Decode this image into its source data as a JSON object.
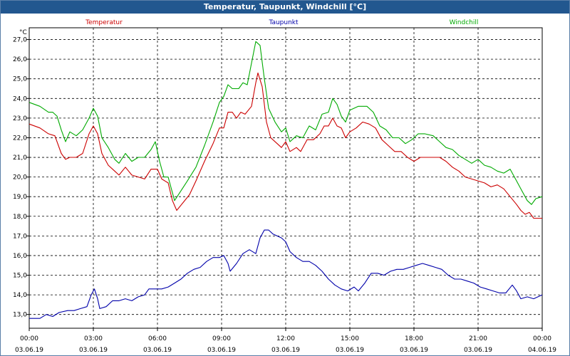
{
  "window": {
    "title": "Temperatur, Taupunkt, Windchill [°C]"
  },
  "chart_data": {
    "type": "line",
    "title": "Temperatur, Taupunkt, Windchill [°C]",
    "ylabel": "°C",
    "ylim": [
      12.3,
      27.6
    ],
    "yticks": [
      "13.0",
      "14.0",
      "15.0",
      "16.0",
      "17.0",
      "18.0",
      "19.0",
      "20.0",
      "21.0",
      "22.0",
      "23.0",
      "24.0",
      "25.0",
      "26.0",
      "27.0"
    ],
    "yticks_display": [
      "13,0",
      "14,0",
      "15,0",
      "16,0",
      "17,0",
      "18,0",
      "19,0",
      "20,0",
      "21,0",
      "22,0",
      "23,0",
      "24,0",
      "25,0",
      "26,0",
      "27,0"
    ],
    "xlim_hours": [
      0,
      24
    ],
    "xticks": [
      {
        "hours": 0,
        "time": "00:00",
        "date": "03.06.19"
      },
      {
        "hours": 3,
        "time": "03:00",
        "date": "03.06.19"
      },
      {
        "hours": 6,
        "time": "06:00",
        "date": "03.06.19"
      },
      {
        "hours": 9,
        "time": "09:00",
        "date": "03.06.19"
      },
      {
        "hours": 12,
        "time": "12:00",
        "date": "03.06.19"
      },
      {
        "hours": 15,
        "time": "15:00",
        "date": "03.06.19"
      },
      {
        "hours": 18,
        "time": "18:00",
        "date": "03.06.19"
      },
      {
        "hours": 21,
        "time": "21:00",
        "date": "03.06.19"
      },
      {
        "hours": 24,
        "time": "00:00",
        "date": "04.06.19"
      }
    ],
    "grid": true,
    "series": [
      {
        "name": "Temperatur",
        "color": "#cc0000",
        "points": [
          [
            0,
            22.7
          ],
          [
            0.5,
            22.5
          ],
          [
            0.9,
            22.2
          ],
          [
            1.2,
            22.1
          ],
          [
            1.5,
            21.2
          ],
          [
            1.7,
            20.9
          ],
          [
            1.9,
            21.0
          ],
          [
            2.2,
            21.0
          ],
          [
            2.5,
            21.2
          ],
          [
            2.8,
            22.2
          ],
          [
            3.0,
            22.6
          ],
          [
            3.2,
            22.2
          ],
          [
            3.4,
            21.2
          ],
          [
            3.7,
            20.6
          ],
          [
            4.0,
            20.3
          ],
          [
            4.2,
            20.1
          ],
          [
            4.5,
            20.5
          ],
          [
            4.8,
            20.1
          ],
          [
            5.1,
            20.0
          ],
          [
            5.4,
            19.9
          ],
          [
            5.7,
            20.4
          ],
          [
            6.0,
            20.4
          ],
          [
            6.2,
            19.9
          ],
          [
            6.5,
            19.7
          ],
          [
            6.7,
            18.8
          ],
          [
            6.9,
            18.3
          ],
          [
            7.2,
            18.7
          ],
          [
            7.5,
            19.1
          ],
          [
            7.8,
            19.8
          ],
          [
            8.2,
            20.8
          ],
          [
            8.6,
            21.7
          ],
          [
            8.9,
            22.5
          ],
          [
            9.1,
            22.5
          ],
          [
            9.3,
            23.3
          ],
          [
            9.5,
            23.3
          ],
          [
            9.7,
            23.0
          ],
          [
            9.9,
            23.3
          ],
          [
            10.1,
            23.2
          ],
          [
            10.4,
            23.6
          ],
          [
            10.6,
            24.8
          ],
          [
            10.7,
            25.3
          ],
          [
            10.9,
            24.6
          ],
          [
            11.1,
            22.8
          ],
          [
            11.3,
            22.0
          ],
          [
            11.6,
            21.7
          ],
          [
            11.8,
            21.5
          ],
          [
            12.0,
            21.8
          ],
          [
            12.2,
            21.3
          ],
          [
            12.5,
            21.5
          ],
          [
            12.7,
            21.3
          ],
          [
            13.0,
            21.9
          ],
          [
            13.3,
            21.9
          ],
          [
            13.6,
            22.2
          ],
          [
            13.8,
            22.6
          ],
          [
            14.0,
            22.6
          ],
          [
            14.2,
            23.0
          ],
          [
            14.4,
            22.6
          ],
          [
            14.6,
            22.5
          ],
          [
            14.8,
            22.0
          ],
          [
            15.0,
            22.3
          ],
          [
            15.3,
            22.5
          ],
          [
            15.6,
            22.8
          ],
          [
            15.9,
            22.7
          ],
          [
            16.2,
            22.5
          ],
          [
            16.5,
            21.9
          ],
          [
            16.8,
            21.6
          ],
          [
            17.1,
            21.3
          ],
          [
            17.4,
            21.3
          ],
          [
            17.7,
            21.0
          ],
          [
            18.0,
            20.8
          ],
          [
            18.3,
            21.0
          ],
          [
            18.6,
            21.0
          ],
          [
            18.9,
            21.0
          ],
          [
            19.2,
            21.0
          ],
          [
            19.5,
            20.8
          ],
          [
            19.8,
            20.5
          ],
          [
            20.1,
            20.3
          ],
          [
            20.4,
            20.0
          ],
          [
            20.7,
            19.9
          ],
          [
            21.0,
            19.8
          ],
          [
            21.3,
            19.7
          ],
          [
            21.6,
            19.5
          ],
          [
            21.9,
            19.6
          ],
          [
            22.2,
            19.4
          ],
          [
            22.5,
            19.0
          ],
          [
            22.8,
            18.6
          ],
          [
            23.0,
            18.3
          ],
          [
            23.2,
            18.1
          ],
          [
            23.4,
            18.2
          ],
          [
            23.6,
            17.9
          ],
          [
            24.0,
            17.9
          ]
        ]
      },
      {
        "name": "Taupunkt",
        "color": "#0000aa",
        "points": [
          [
            0,
            12.8
          ],
          [
            0.5,
            12.8
          ],
          [
            0.8,
            13.0
          ],
          [
            1.1,
            12.9
          ],
          [
            1.4,
            13.1
          ],
          [
            1.8,
            13.2
          ],
          [
            2.1,
            13.2
          ],
          [
            2.4,
            13.3
          ],
          [
            2.7,
            13.4
          ],
          [
            2.9,
            14.0
          ],
          [
            3.05,
            14.3
          ],
          [
            3.2,
            13.8
          ],
          [
            3.3,
            13.3
          ],
          [
            3.6,
            13.4
          ],
          [
            3.9,
            13.7
          ],
          [
            4.2,
            13.7
          ],
          [
            4.5,
            13.8
          ],
          [
            4.8,
            13.7
          ],
          [
            5.1,
            13.9
          ],
          [
            5.4,
            14.0
          ],
          [
            5.6,
            14.3
          ],
          [
            5.9,
            14.3
          ],
          [
            6.2,
            14.3
          ],
          [
            6.5,
            14.4
          ],
          [
            6.8,
            14.6
          ],
          [
            7.1,
            14.8
          ],
          [
            7.4,
            15.1
          ],
          [
            7.7,
            15.3
          ],
          [
            8.0,
            15.4
          ],
          [
            8.3,
            15.7
          ],
          [
            8.6,
            15.9
          ],
          [
            8.9,
            15.9
          ],
          [
            9.1,
            16.0
          ],
          [
            9.3,
            15.6
          ],
          [
            9.4,
            15.2
          ],
          [
            9.7,
            15.6
          ],
          [
            10.0,
            16.1
          ],
          [
            10.3,
            16.3
          ],
          [
            10.6,
            16.1
          ],
          [
            10.8,
            16.9
          ],
          [
            11.0,
            17.3
          ],
          [
            11.2,
            17.3
          ],
          [
            11.4,
            17.1
          ],
          [
            11.6,
            17.0
          ],
          [
            11.8,
            16.9
          ],
          [
            12.0,
            16.7
          ],
          [
            12.2,
            16.2
          ],
          [
            12.5,
            15.9
          ],
          [
            12.8,
            15.7
          ],
          [
            13.1,
            15.7
          ],
          [
            13.4,
            15.5
          ],
          [
            13.7,
            15.2
          ],
          [
            14.0,
            14.8
          ],
          [
            14.3,
            14.5
          ],
          [
            14.6,
            14.3
          ],
          [
            14.9,
            14.2
          ],
          [
            15.2,
            14.4
          ],
          [
            15.4,
            14.2
          ],
          [
            15.7,
            14.6
          ],
          [
            16.0,
            15.1
          ],
          [
            16.3,
            15.1
          ],
          [
            16.6,
            15.0
          ],
          [
            16.9,
            15.2
          ],
          [
            17.2,
            15.3
          ],
          [
            17.5,
            15.3
          ],
          [
            17.8,
            15.4
          ],
          [
            18.1,
            15.5
          ],
          [
            18.4,
            15.6
          ],
          [
            18.7,
            15.5
          ],
          [
            19.0,
            15.4
          ],
          [
            19.3,
            15.3
          ],
          [
            19.6,
            15.0
          ],
          [
            19.9,
            14.8
          ],
          [
            20.2,
            14.8
          ],
          [
            20.5,
            14.7
          ],
          [
            20.8,
            14.6
          ],
          [
            21.1,
            14.4
          ],
          [
            21.4,
            14.3
          ],
          [
            21.7,
            14.2
          ],
          [
            22.0,
            14.1
          ],
          [
            22.3,
            14.1
          ],
          [
            22.6,
            14.5
          ],
          [
            22.8,
            14.2
          ],
          [
            23.0,
            13.8
          ],
          [
            23.3,
            13.9
          ],
          [
            23.6,
            13.8
          ],
          [
            23.8,
            13.9
          ],
          [
            24.0,
            14.0
          ]
        ]
      },
      {
        "name": "Windchill",
        "color": "#00aa00",
        "points": [
          [
            0,
            23.8
          ],
          [
            0.5,
            23.6
          ],
          [
            0.9,
            23.3
          ],
          [
            1.1,
            23.3
          ],
          [
            1.3,
            23.1
          ],
          [
            1.5,
            22.4
          ],
          [
            1.7,
            21.8
          ],
          [
            1.9,
            22.3
          ],
          [
            2.2,
            22.1
          ],
          [
            2.5,
            22.4
          ],
          [
            2.8,
            23.0
          ],
          [
            3.0,
            23.5
          ],
          [
            3.2,
            23.1
          ],
          [
            3.4,
            22.0
          ],
          [
            3.7,
            21.5
          ],
          [
            4.0,
            20.9
          ],
          [
            4.2,
            20.7
          ],
          [
            4.5,
            21.2
          ],
          [
            4.8,
            20.8
          ],
          [
            5.1,
            21.0
          ],
          [
            5.4,
            21.0
          ],
          [
            5.7,
            21.4
          ],
          [
            5.9,
            21.8
          ],
          [
            6.1,
            20.8
          ],
          [
            6.3,
            20.0
          ],
          [
            6.5,
            20.0
          ],
          [
            6.7,
            19.2
          ],
          [
            6.8,
            18.8
          ],
          [
            7.1,
            19.3
          ],
          [
            7.4,
            19.8
          ],
          [
            7.8,
            20.5
          ],
          [
            8.2,
            21.6
          ],
          [
            8.6,
            22.8
          ],
          [
            8.9,
            23.8
          ],
          [
            9.1,
            24.1
          ],
          [
            9.3,
            24.7
          ],
          [
            9.5,
            24.5
          ],
          [
            9.8,
            24.5
          ],
          [
            10.0,
            24.8
          ],
          [
            10.2,
            24.7
          ],
          [
            10.4,
            25.8
          ],
          [
            10.6,
            26.9
          ],
          [
            10.8,
            26.7
          ],
          [
            11.0,
            25.0
          ],
          [
            11.2,
            23.5
          ],
          [
            11.5,
            22.8
          ],
          [
            11.8,
            22.3
          ],
          [
            12.0,
            22.5
          ],
          [
            12.2,
            21.8
          ],
          [
            12.5,
            22.1
          ],
          [
            12.8,
            22.0
          ],
          [
            13.1,
            22.6
          ],
          [
            13.4,
            22.4
          ],
          [
            13.7,
            23.2
          ],
          [
            14.0,
            23.3
          ],
          [
            14.2,
            24.0
          ],
          [
            14.4,
            23.7
          ],
          [
            14.6,
            23.1
          ],
          [
            14.8,
            22.8
          ],
          [
            15.0,
            23.4
          ],
          [
            15.4,
            23.6
          ],
          [
            15.8,
            23.6
          ],
          [
            16.1,
            23.3
          ],
          [
            16.4,
            22.6
          ],
          [
            16.7,
            22.4
          ],
          [
            17.0,
            22.0
          ],
          [
            17.3,
            22.0
          ],
          [
            17.6,
            21.7
          ],
          [
            17.9,
            21.9
          ],
          [
            18.2,
            22.2
          ],
          [
            18.5,
            22.2
          ],
          [
            18.9,
            22.1
          ],
          [
            19.2,
            21.8
          ],
          [
            19.5,
            21.5
          ],
          [
            19.8,
            21.4
          ],
          [
            20.1,
            21.1
          ],
          [
            20.4,
            20.9
          ],
          [
            20.7,
            20.7
          ],
          [
            21.0,
            20.9
          ],
          [
            21.3,
            20.6
          ],
          [
            21.6,
            20.5
          ],
          [
            21.9,
            20.3
          ],
          [
            22.2,
            20.2
          ],
          [
            22.5,
            20.4
          ],
          [
            22.8,
            19.8
          ],
          [
            23.0,
            19.4
          ],
          [
            23.3,
            18.8
          ],
          [
            23.5,
            18.6
          ],
          [
            23.7,
            18.9
          ],
          [
            24.0,
            19.0
          ]
        ]
      }
    ]
  }
}
